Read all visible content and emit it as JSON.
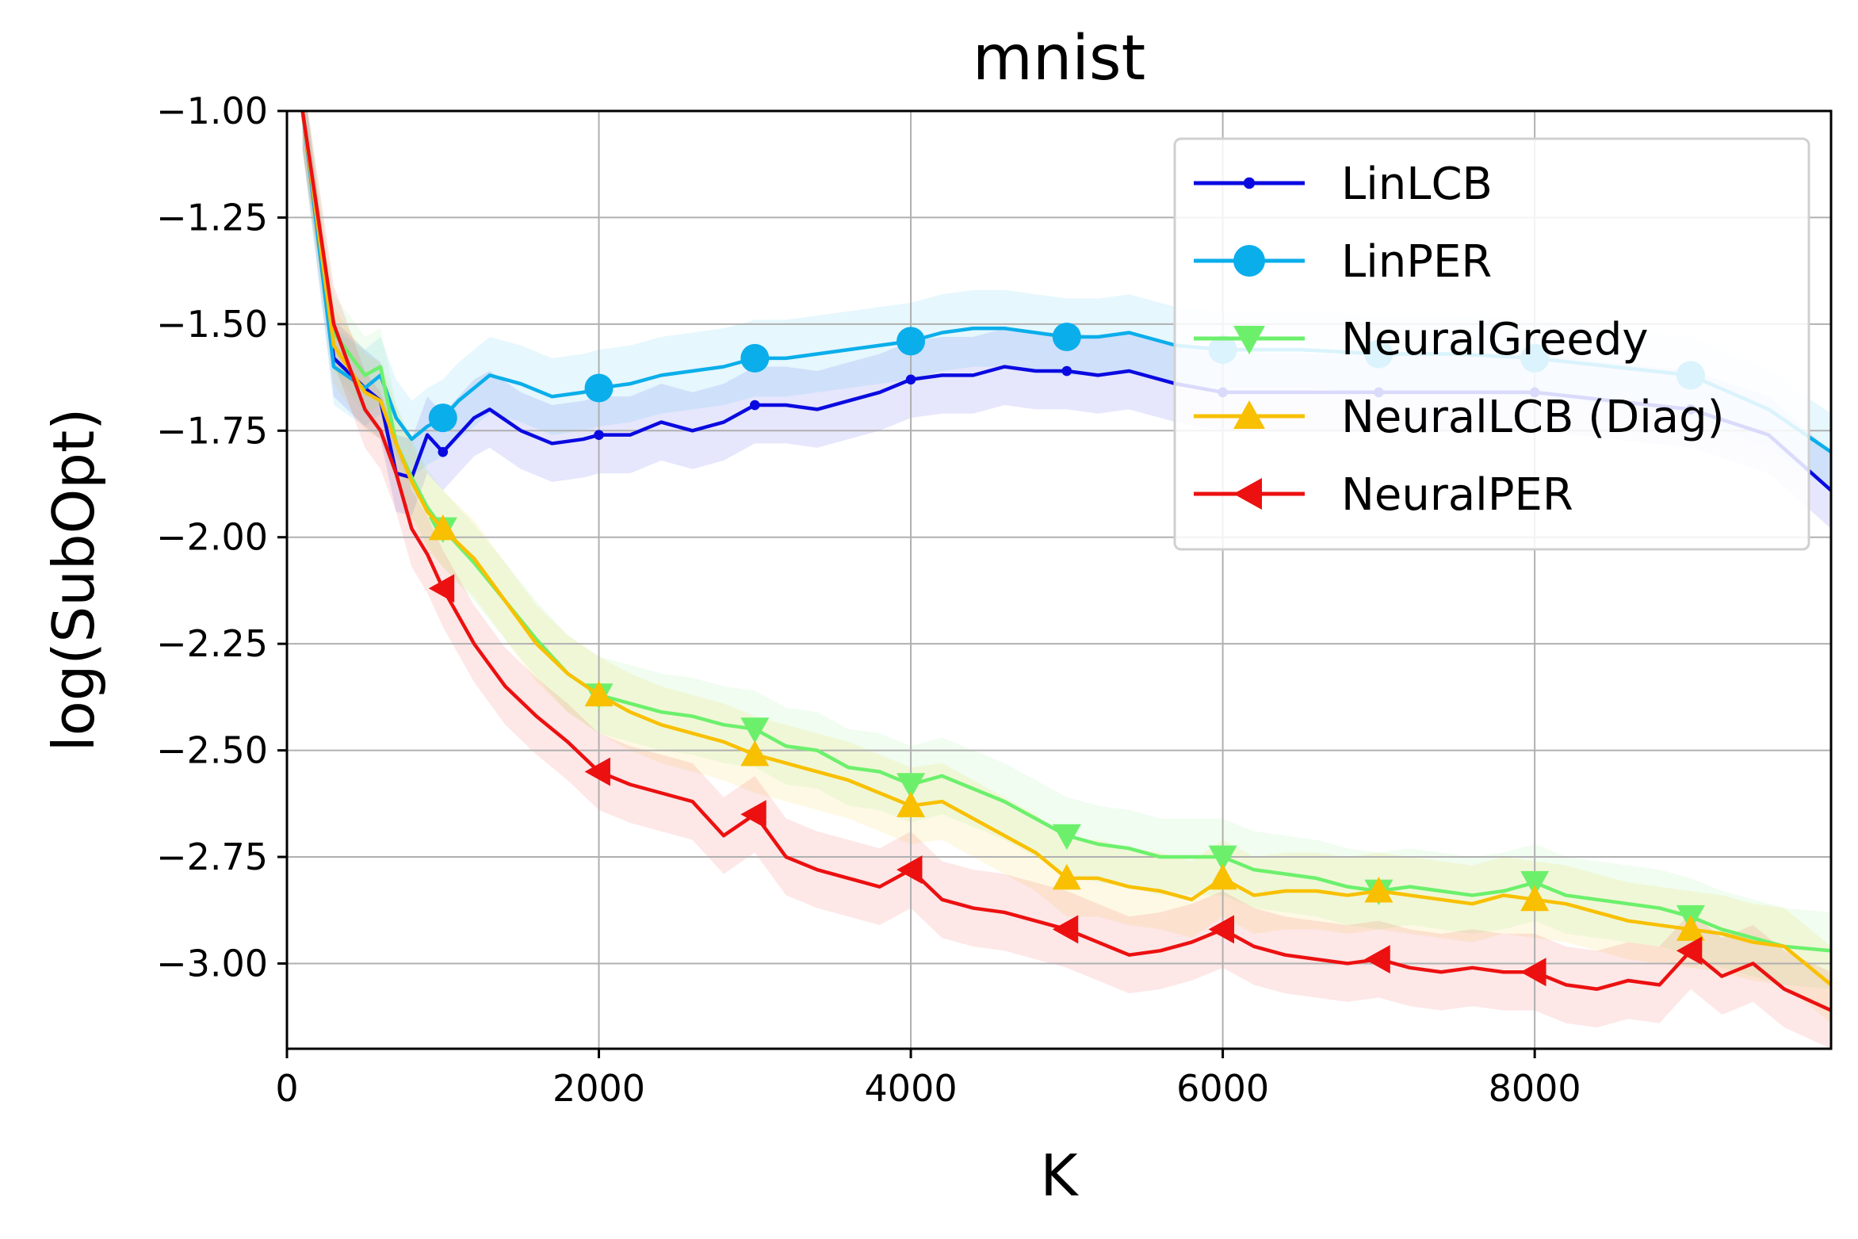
{
  "chart_data": {
    "type": "line",
    "title": "mnist",
    "xlabel": "K",
    "ylabel": "log(SubOpt)",
    "xlim": [
      0,
      9900
    ],
    "ylim": [
      -3.2,
      -1.0
    ],
    "xticks": [
      0,
      2000,
      4000,
      6000,
      8000
    ],
    "xtick_labels": [
      "0",
      "2000",
      "4000",
      "6000",
      "8000"
    ],
    "yticks": [
      -1.0,
      -1.25,
      -1.5,
      -1.75,
      -2.0,
      -2.25,
      -2.5,
      -2.75,
      -3.0
    ],
    "ytick_labels": [
      "−1.00",
      "−1.25",
      "−1.50",
      "−1.75",
      "−2.00",
      "−2.25",
      "−2.50",
      "−2.75",
      "−3.00"
    ],
    "grid": true,
    "legend_position": "top-right",
    "series": [
      {
        "name": "LinLCB",
        "color": "#0a0ae0",
        "marker": "point",
        "x": [
          100,
          300,
          500,
          600,
          700,
          800,
          900,
          1000,
          1200,
          1300,
          1500,
          1700,
          1900,
          2000,
          2200,
          2400,
          2600,
          2800,
          3000,
          3200,
          3400,
          3600,
          3800,
          4000,
          4200,
          4400,
          4600,
          4800,
          5000,
          5200,
          5400,
          5700,
          6000,
          6500,
          7000,
          7500,
          8000,
          8500,
          9000,
          9500,
          9900
        ],
        "y": [
          -1.0,
          -1.58,
          -1.65,
          -1.68,
          -1.85,
          -1.86,
          -1.76,
          -1.8,
          -1.72,
          -1.7,
          -1.75,
          -1.78,
          -1.77,
          -1.76,
          -1.76,
          -1.73,
          -1.75,
          -1.73,
          -1.69,
          -1.69,
          -1.7,
          -1.68,
          -1.66,
          -1.63,
          -1.62,
          -1.62,
          -1.6,
          -1.61,
          -1.61,
          -1.62,
          -1.61,
          -1.64,
          -1.66,
          -1.66,
          -1.66,
          -1.66,
          -1.66,
          -1.68,
          -1.7,
          -1.76,
          -1.89
        ]
      },
      {
        "name": "LinPER",
        "color": "#0aaeea",
        "marker": "circle",
        "x": [
          100,
          300,
          500,
          600,
          700,
          800,
          900,
          1000,
          1100,
          1300,
          1500,
          1700,
          1900,
          2000,
          2200,
          2400,
          2600,
          2800,
          3000,
          3200,
          3400,
          3600,
          3800,
          4000,
          4200,
          4400,
          4600,
          4800,
          5000,
          5200,
          5400,
          5700,
          6000,
          6500,
          7000,
          7500,
          8000,
          8500,
          9000,
          9500,
          9900
        ],
        "y": [
          -1.0,
          -1.6,
          -1.65,
          -1.62,
          -1.72,
          -1.77,
          -1.74,
          -1.72,
          -1.68,
          -1.62,
          -1.64,
          -1.67,
          -1.66,
          -1.65,
          -1.64,
          -1.62,
          -1.61,
          -1.6,
          -1.58,
          -1.58,
          -1.57,
          -1.56,
          -1.55,
          -1.54,
          -1.52,
          -1.51,
          -1.51,
          -1.52,
          -1.53,
          -1.53,
          -1.52,
          -1.55,
          -1.56,
          -1.56,
          -1.57,
          -1.57,
          -1.58,
          -1.6,
          -1.62,
          -1.7,
          -1.8
        ]
      },
      {
        "name": "NeuralGreedy",
        "color": "#6cf06c",
        "marker": "triangle-down",
        "x": [
          100,
          300,
          500,
          600,
          700,
          800,
          900,
          1000,
          1200,
          1400,
          1600,
          1800,
          2000,
          2200,
          2400,
          2600,
          2800,
          3000,
          3200,
          3400,
          3600,
          3800,
          4000,
          4200,
          4400,
          4600,
          4800,
          5000,
          5200,
          5400,
          5600,
          5800,
          6000,
          6200,
          6400,
          6600,
          6800,
          7000,
          7200,
          7400,
          7600,
          7800,
          8000,
          8200,
          8400,
          8600,
          8800,
          9000,
          9200,
          9400,
          9600,
          9900
        ],
        "y": [
          -1.0,
          -1.52,
          -1.62,
          -1.6,
          -1.78,
          -1.86,
          -1.93,
          -1.98,
          -2.06,
          -2.15,
          -2.24,
          -2.32,
          -2.37,
          -2.39,
          -2.41,
          -2.42,
          -2.44,
          -2.45,
          -2.49,
          -2.5,
          -2.54,
          -2.55,
          -2.58,
          -2.56,
          -2.59,
          -2.62,
          -2.66,
          -2.7,
          -2.72,
          -2.73,
          -2.75,
          -2.75,
          -2.75,
          -2.78,
          -2.79,
          -2.8,
          -2.82,
          -2.83,
          -2.82,
          -2.83,
          -2.84,
          -2.83,
          -2.81,
          -2.84,
          -2.85,
          -2.86,
          -2.87,
          -2.89,
          -2.92,
          -2.94,
          -2.96,
          -2.97
        ]
      },
      {
        "name": "NeuralLCB (Diag)",
        "color": "#f8c000",
        "marker": "triangle-up",
        "x": [
          100,
          300,
          500,
          600,
          700,
          800,
          900,
          1000,
          1200,
          1400,
          1600,
          1800,
          2000,
          2200,
          2400,
          2600,
          2800,
          3000,
          3200,
          3400,
          3600,
          3800,
          4000,
          4200,
          4400,
          4600,
          4800,
          5000,
          5200,
          5400,
          5600,
          5800,
          6000,
          6200,
          6400,
          6600,
          6800,
          7000,
          7200,
          7400,
          7600,
          7800,
          8000,
          8200,
          8400,
          8600,
          8800,
          9000,
          9200,
          9400,
          9600,
          9900
        ],
        "y": [
          -1.0,
          -1.55,
          -1.66,
          -1.68,
          -1.78,
          -1.87,
          -1.94,
          -1.98,
          -2.05,
          -2.15,
          -2.25,
          -2.32,
          -2.37,
          -2.41,
          -2.44,
          -2.46,
          -2.48,
          -2.51,
          -2.53,
          -2.55,
          -2.57,
          -2.6,
          -2.63,
          -2.62,
          -2.66,
          -2.7,
          -2.74,
          -2.8,
          -2.8,
          -2.82,
          -2.83,
          -2.85,
          -2.8,
          -2.84,
          -2.83,
          -2.83,
          -2.84,
          -2.83,
          -2.84,
          -2.85,
          -2.86,
          -2.84,
          -2.85,
          -2.86,
          -2.88,
          -2.9,
          -2.91,
          -2.92,
          -2.93,
          -2.95,
          -2.96,
          -3.05
        ]
      },
      {
        "name": "NeuralPER",
        "color": "#ec1010",
        "marker": "triangle-left",
        "x": [
          100,
          300,
          500,
          600,
          700,
          800,
          900,
          1000,
          1200,
          1400,
          1600,
          1800,
          2000,
          2200,
          2400,
          2600,
          2800,
          3000,
          3200,
          3400,
          3600,
          3800,
          4000,
          4200,
          4400,
          4600,
          4800,
          5000,
          5200,
          5400,
          5600,
          5800,
          6000,
          6200,
          6400,
          6600,
          6800,
          7000,
          7200,
          7400,
          7600,
          7800,
          8000,
          8200,
          8400,
          8600,
          8800,
          9000,
          9200,
          9400,
          9600,
          9900
        ],
        "y": [
          -1.0,
          -1.5,
          -1.7,
          -1.75,
          -1.85,
          -1.98,
          -2.04,
          -2.12,
          -2.25,
          -2.35,
          -2.42,
          -2.48,
          -2.55,
          -2.58,
          -2.6,
          -2.62,
          -2.7,
          -2.65,
          -2.75,
          -2.78,
          -2.8,
          -2.82,
          -2.78,
          -2.85,
          -2.87,
          -2.88,
          -2.9,
          -2.92,
          -2.95,
          -2.98,
          -2.97,
          -2.95,
          -2.92,
          -2.96,
          -2.98,
          -2.99,
          -3.0,
          -2.99,
          -3.01,
          -3.02,
          -3.01,
          -3.02,
          -3.02,
          -3.05,
          -3.06,
          -3.04,
          -3.05,
          -2.97,
          -3.03,
          -3.0,
          -3.06,
          -3.11
        ]
      }
    ]
  }
}
